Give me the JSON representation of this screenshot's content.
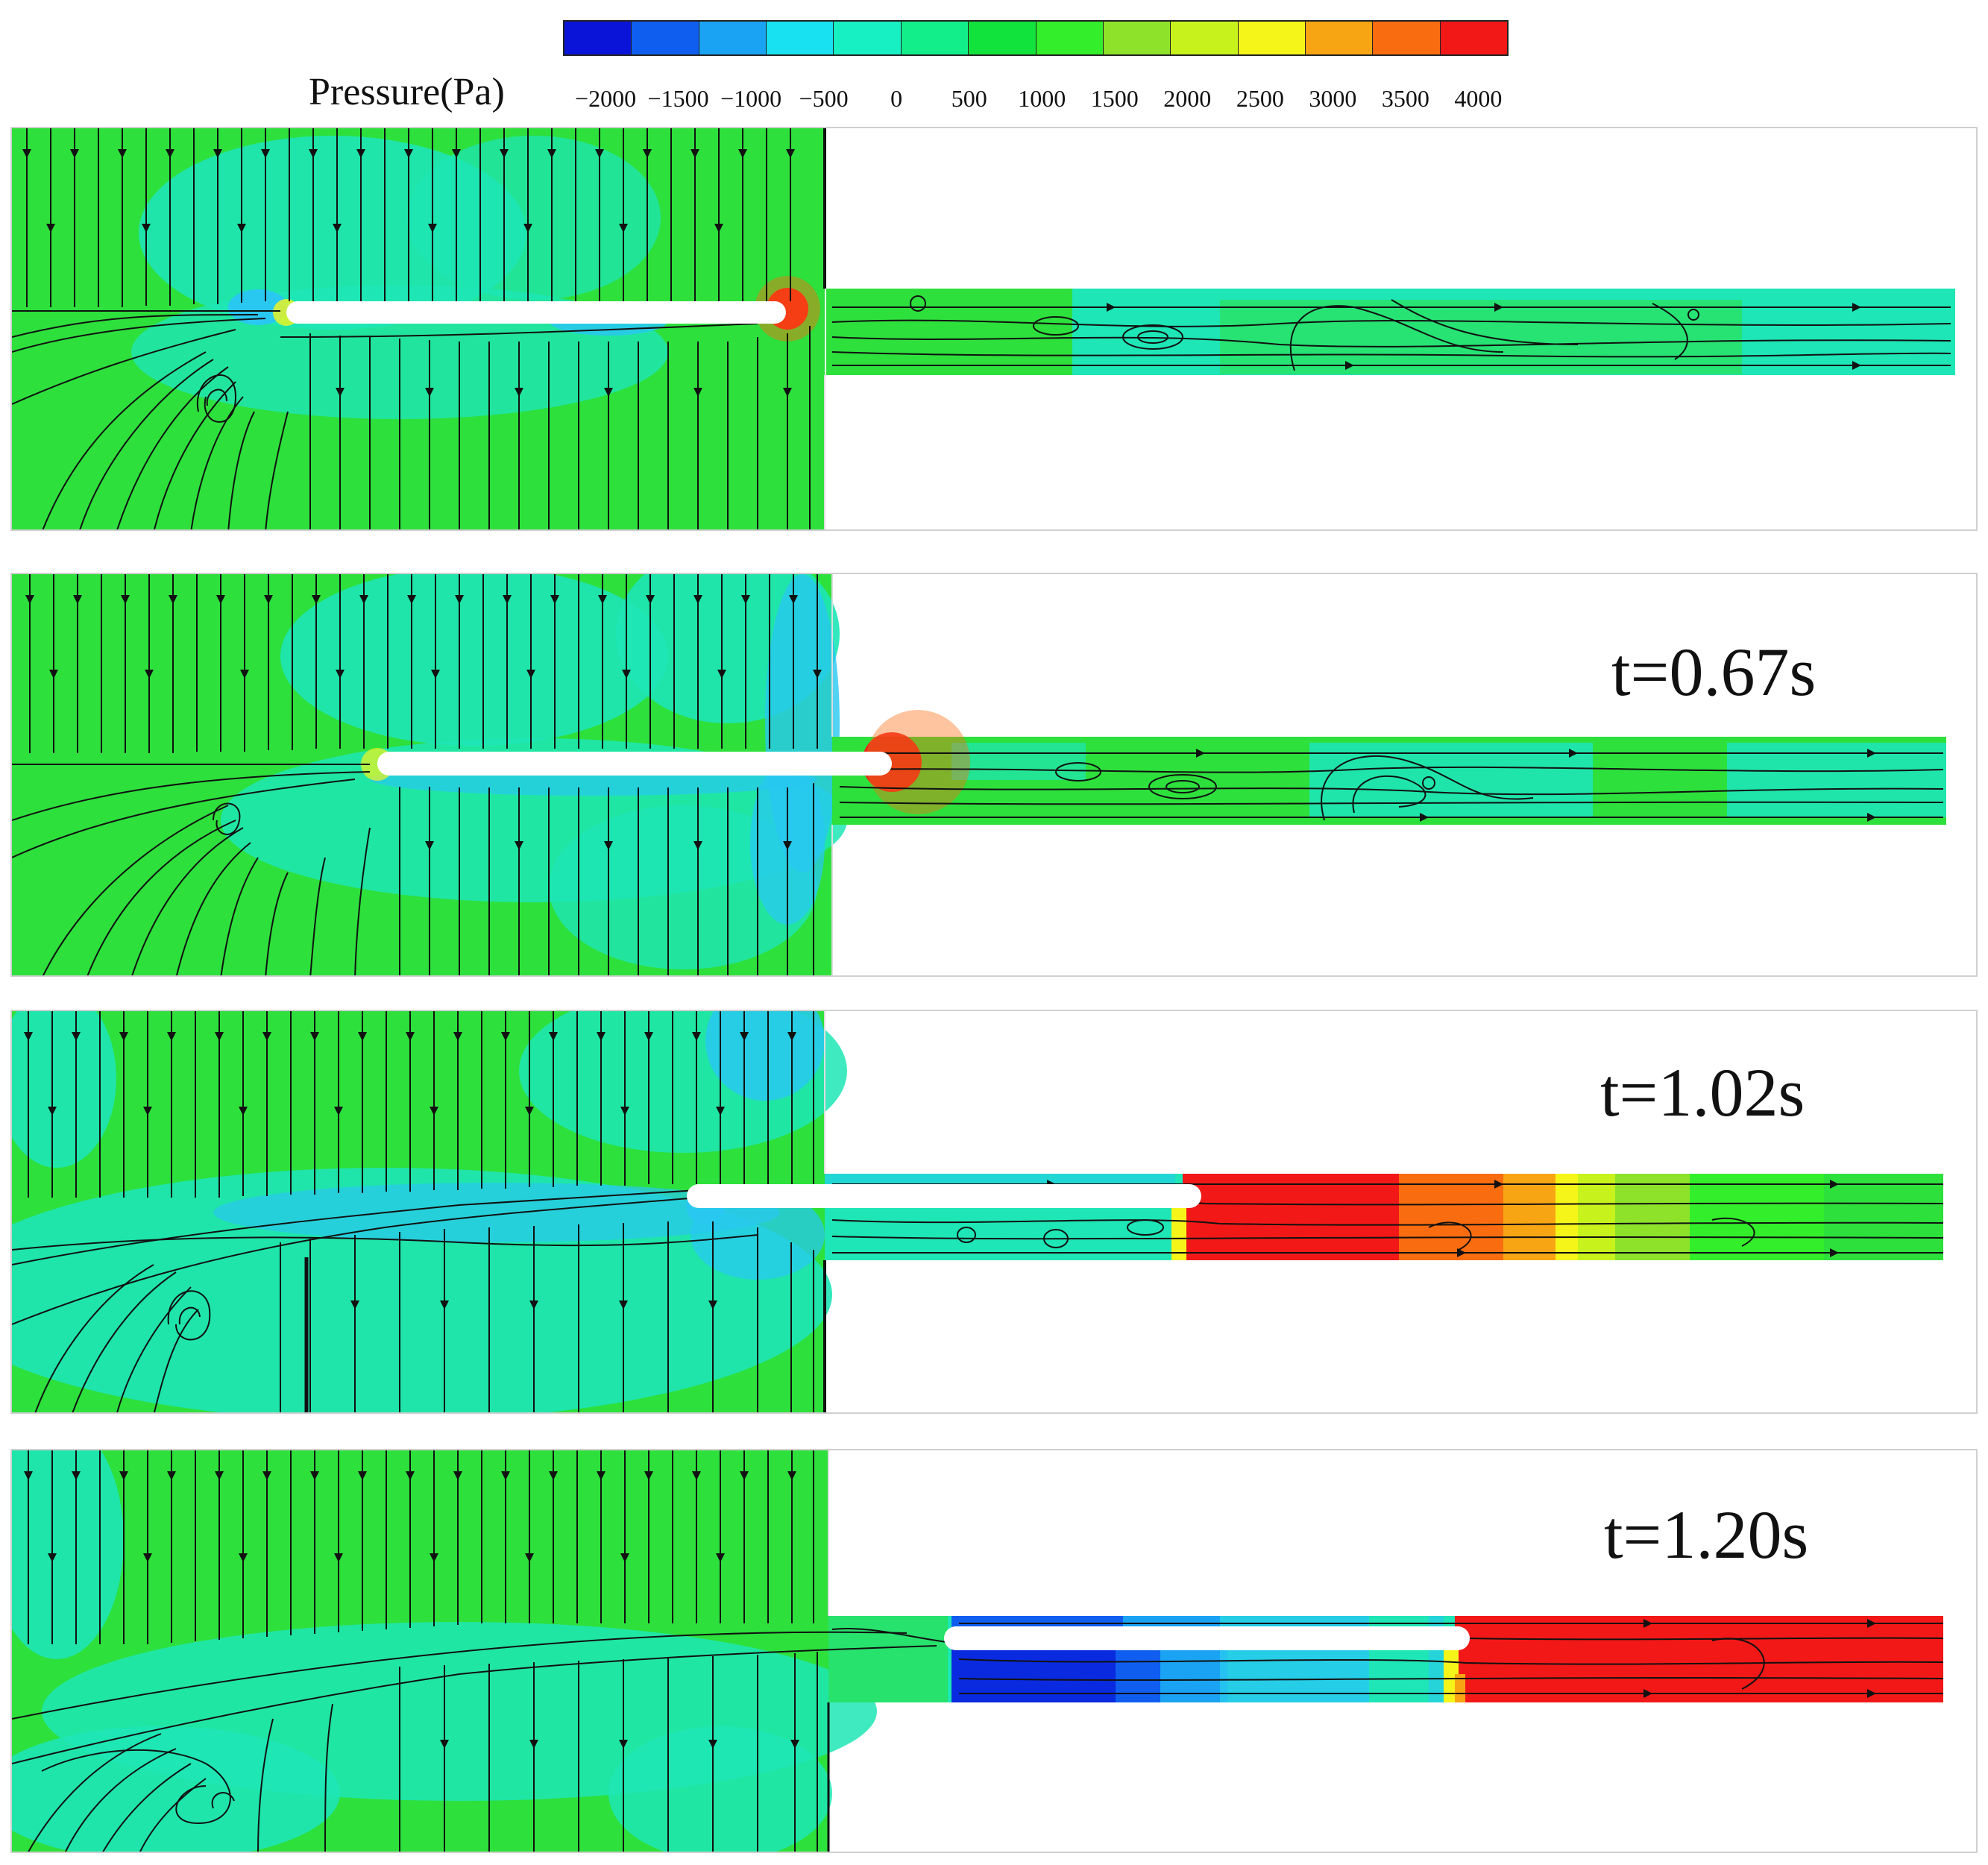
{
  "legend": {
    "title": "Pressure(Pa)",
    "ticks": [
      "−2000",
      "−1500",
      "−1000",
      "−500",
      "0",
      "500",
      "1000",
      "1500",
      "2000",
      "2500",
      "3000",
      "3500",
      "4000"
    ],
    "colors": [
      "#0a14d8",
      "#0f5ef0",
      "#1aa3f2",
      "#18e2f2",
      "#17f0c2",
      "#12ee8a",
      "#12e23c",
      "#33ee2a",
      "#8ee22a",
      "#c8f21c",
      "#f5f51a",
      "#f8a514",
      "#f96c10",
      "#f21818"
    ]
  },
  "panels": [
    {
      "id": "panel-1",
      "time_label": ""
    },
    {
      "id": "panel-2",
      "time_label": "t=0.67s"
    },
    {
      "id": "panel-3",
      "time_label": "t=1.02s"
    },
    {
      "id": "panel-4",
      "time_label": "t=1.20s"
    }
  ],
  "colors": {
    "field_green": "#2de03c",
    "field_cyan": "#1ee6b6",
    "field_lightblue": "#28c8f0",
    "high_red": "#f21818",
    "low_blue": "#0a2ae0",
    "streamline": "#111111",
    "projectile": "#ffffff"
  }
}
